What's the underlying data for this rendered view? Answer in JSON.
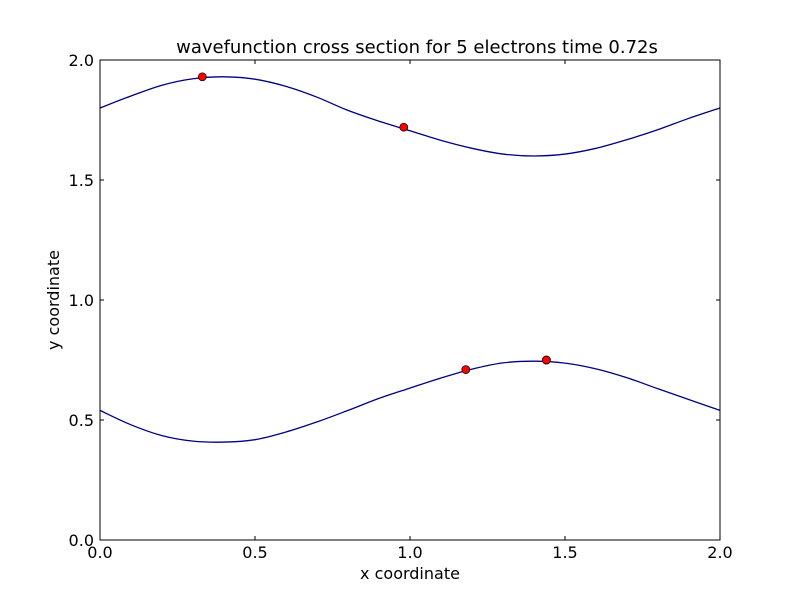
{
  "chart_data": {
    "type": "line",
    "title": "wavefunction cross section for 5 electrons time 0.72s",
    "xlabel": "x coordinate",
    "ylabel": "y coordinate",
    "xlim": [
      0.0,
      2.0
    ],
    "ylim": [
      0.0,
      2.0
    ],
    "xticks": [
      0.0,
      0.5,
      1.0,
      1.5,
      2.0
    ],
    "yticks": [
      0.0,
      0.5,
      1.0,
      1.5,
      2.0
    ],
    "xtick_labels": [
      "0.0",
      "0.5",
      "1.0",
      "1.5",
      "2.0"
    ],
    "ytick_labels": [
      "0.0",
      "0.5",
      "1.0",
      "1.5",
      "2.0"
    ],
    "grid": false,
    "line_color": "#000080",
    "marker_color": "#ff0000",
    "series": [
      {
        "x": [
          0.0,
          0.1,
          0.2,
          0.3,
          0.4,
          0.5,
          0.6,
          0.7,
          0.8,
          0.9,
          1.0,
          1.1,
          1.2,
          1.3,
          1.4,
          1.5,
          1.6,
          1.7,
          1.8,
          1.9,
          2.0
        ],
        "y": [
          1.8,
          1.85,
          1.895,
          1.922,
          1.93,
          1.92,
          1.89,
          1.845,
          1.79,
          1.745,
          1.705,
          1.665,
          1.632,
          1.608,
          1.6,
          1.608,
          1.632,
          1.668,
          1.71,
          1.757,
          1.8
        ]
      },
      {
        "x": [
          0.0,
          0.1,
          0.2,
          0.3,
          0.4,
          0.5,
          0.6,
          0.7,
          0.8,
          0.9,
          1.0,
          1.1,
          1.2,
          1.3,
          1.4,
          1.5,
          1.6,
          1.7,
          1.8,
          1.9,
          2.0
        ],
        "y": [
          0.54,
          0.48,
          0.435,
          0.412,
          0.408,
          0.418,
          0.45,
          0.492,
          0.54,
          0.59,
          0.633,
          0.675,
          0.712,
          0.738,
          0.745,
          0.737,
          0.713,
          0.676,
          0.63,
          0.585,
          0.54
        ]
      }
    ],
    "points": [
      {
        "x": 0.33,
        "y": 1.93
      },
      {
        "x": 0.98,
        "y": 1.72
      },
      {
        "x": 1.18,
        "y": 0.71
      },
      {
        "x": 1.44,
        "y": 0.75
      },
      {
        "x": 1.44,
        "y": 0.75
      }
    ]
  }
}
